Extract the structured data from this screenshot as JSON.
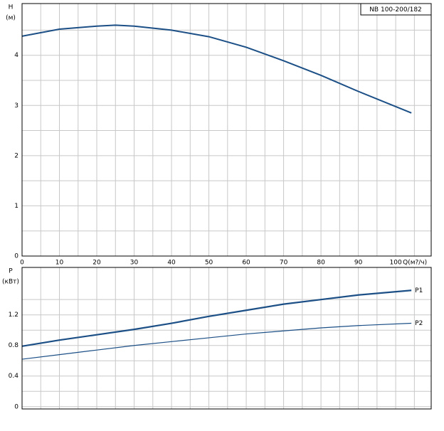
{
  "chart_data": [
    {
      "type": "line",
      "annotation": "NB 100-200/182",
      "ylabel": "H",
      "yunit": "(м)",
      "xlabel": "Q(м?/ч)",
      "x": [
        0,
        10,
        20,
        25,
        30,
        40,
        50,
        60,
        70,
        80,
        90,
        104.2
      ],
      "series": [
        {
          "color": "#1b4f86",
          "values": [
            4.38,
            4.52,
            4.58,
            4.6,
            4.58,
            4.5,
            4.37,
            4.16,
            3.89,
            3.6,
            3.28,
            2.85
          ]
        }
      ],
      "xlim": [
        0,
        109.5
      ],
      "ylim": [
        0,
        5.03
      ],
      "xticks": [
        0,
        10,
        20,
        30,
        40,
        50,
        60,
        70,
        80,
        90,
        100
      ],
      "yticks": [
        0,
        1,
        2,
        3,
        4
      ],
      "grid": true
    },
    {
      "type": "line",
      "ylabel": "P",
      "yunit": "(кВт)",
      "x": [
        0,
        10,
        20,
        30,
        40,
        50,
        60,
        70,
        80,
        90,
        104.2
      ],
      "series": [
        {
          "name": "P1",
          "color": "#1b4f86",
          "width": 2.2,
          "values": [
            0.79,
            0.87,
            0.94,
            1.01,
            1.09,
            1.18,
            1.26,
            1.34,
            1.4,
            1.46,
            1.52
          ]
        },
        {
          "name": "P2",
          "color": "#1b4f86",
          "width": 1.2,
          "values": [
            0.62,
            0.68,
            0.74,
            0.8,
            0.85,
            0.9,
            0.95,
            0.99,
            1.03,
            1.06,
            1.09
          ]
        }
      ],
      "xlim": [
        0,
        109.5
      ],
      "ylim": [
        -0.03,
        1.82
      ],
      "xticks": [
        0,
        10,
        20,
        30,
        40,
        50,
        60,
        70,
        80,
        90,
        100
      ],
      "yticks": [
        0,
        0.4,
        0.8,
        1.2
      ],
      "grid": true
    }
  ]
}
